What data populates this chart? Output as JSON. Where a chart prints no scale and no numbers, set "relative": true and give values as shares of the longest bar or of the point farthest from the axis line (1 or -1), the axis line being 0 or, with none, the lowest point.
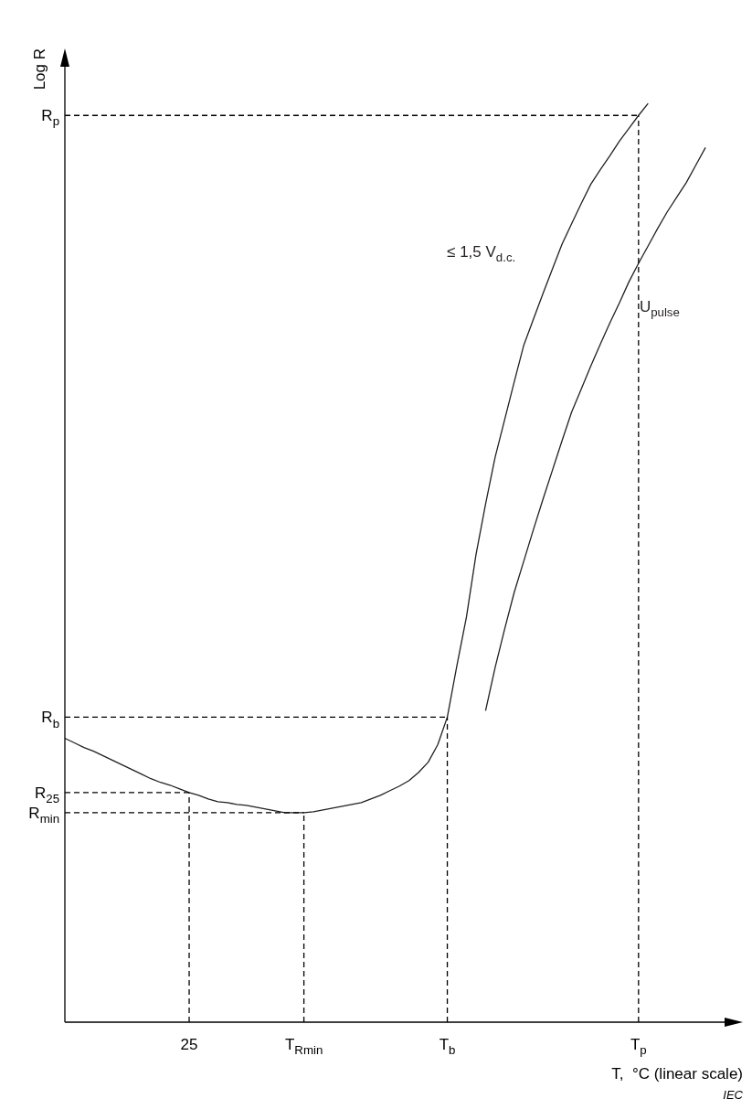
{
  "chart_data": {
    "type": "line",
    "relative": true,
    "xlabel": "T,  °C (linear scale)",
    "ylabel": "Log R",
    "grid": false,
    "legend": false,
    "marker": "none",
    "line_style": "solid",
    "annotations": [
      "IEC"
    ],
    "categories": [
      null,
      null,
      null,
      null,
      null,
      null,
      null,
      null,
      null,
      null,
      null,
      null,
      null,
      "25",
      null,
      null,
      null,
      null,
      null,
      null,
      null,
      null,
      null,
      null,
      null,
      "T$_{Rmin}$",
      null,
      null,
      null,
      null,
      null,
      null,
      null,
      null,
      null,
      null,
      null,
      null,
      null,
      null,
      "T$_{b}$",
      null,
      null,
      null,
      null,
      null,
      null,
      null,
      null,
      null,
      null,
      null,
      null,
      null,
      null,
      null,
      null,
      null,
      null,
      null,
      "T$_{p}$",
      null,
      null,
      null,
      null,
      null,
      null,
      null,
      null,
      null
    ],
    "series": [
      {
        "name": "≤ 1,5 V$_{d.c.}$",
        "color": "#231f20",
        "values": [
          0.309,
          0.304,
          0.299,
          0.295,
          0.29,
          0.285,
          0.28,
          0.275,
          0.27,
          0.265,
          0.261,
          0.258,
          0.254,
          0.25,
          0.247,
          0.243,
          0.24,
          0.239,
          0.237,
          0.236,
          0.234,
          0.232,
          0.23,
          0.228,
          0.228,
          0.228,
          0.229,
          0.231,
          0.233,
          0.235,
          0.237,
          0.239,
          0.243,
          0.247,
          0.252,
          0.257,
          0.263,
          0.272,
          0.283,
          0.302,
          0.332,
          0.388,
          0.441,
          0.509,
          0.564,
          0.615,
          0.656,
          0.697,
          0.737,
          0.765,
          0.793,
          0.82,
          0.847,
          0.869,
          0.891,
          0.912,
          0.928,
          0.943,
          0.959,
          0.973,
          0.987,
          1,
          null,
          null,
          null,
          null,
          null,
          null,
          null,
          null
        ]
      },
      {
        "name": "U$_{pulse}$",
        "color": "#231f20",
        "values": [
          null,
          null,
          null,
          null,
          null,
          null,
          null,
          null,
          null,
          null,
          null,
          null,
          null,
          null,
          null,
          null,
          null,
          null,
          null,
          null,
          null,
          null,
          null,
          null,
          null,
          null,
          null,
          null,
          null,
          null,
          null,
          null,
          null,
          null,
          null,
          null,
          null,
          null,
          null,
          null,
          null,
          null,
          null,
          null,
          0.339,
          0.386,
          0.428,
          0.468,
          0.502,
          0.536,
          0.569,
          0.601,
          0.633,
          0.664,
          0.689,
          0.714,
          0.738,
          0.761,
          0.783,
          0.806,
          0.826,
          0.845,
          0.864,
          0.882,
          0.898,
          0.914,
          0.933,
          0.952,
          null,
          null
        ]
      }
    ],
    "ref_lines": [
      {
        "axis": "y",
        "value": 0.987,
        "label": "R$_{p}$",
        "line_style": "dashed"
      },
      {
        "axis": "y",
        "value": 0.332,
        "label": "R$_{b}$",
        "line_style": "dashed"
      },
      {
        "axis": "y",
        "value": 0.25,
        "label": "R$_{25}$",
        "line_style": "dashed"
      },
      {
        "axis": "y",
        "value": 0.228,
        "label": "R$_{min}$",
        "line_style": "dashed"
      },
      {
        "axis": "x",
        "value": "T$_{p}$",
        "line_style": "dashed"
      },
      {
        "axis": "x",
        "value": "T$_{b}$",
        "line_style": "dashed"
      },
      {
        "axis": "x",
        "value": "25",
        "line_style": "dashed"
      },
      {
        "axis": "x",
        "value": "T$_{Rmin}$",
        "line_style": "dashed"
      }
    ]
  }
}
